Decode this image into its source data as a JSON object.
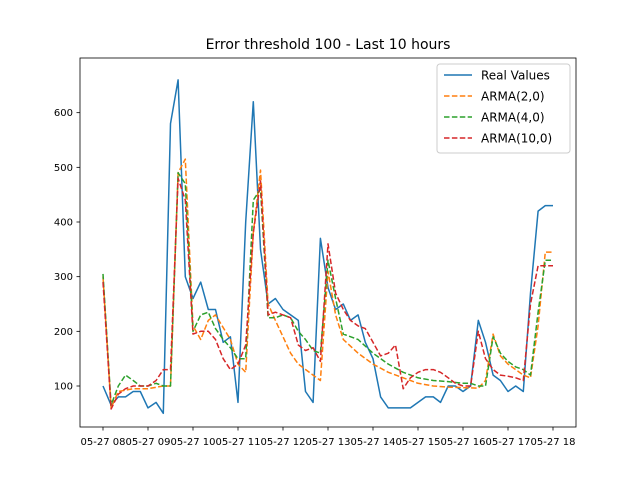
{
  "chart_data": {
    "type": "line",
    "title": "Error threshold 100 - Last 10 hours",
    "xlabel": "",
    "ylabel": "",
    "ylim": [
      25,
      700
    ],
    "yticks": [
      100,
      200,
      300,
      400,
      500,
      600
    ],
    "xticks": [
      "05-27 08",
      "05-27 09",
      "05-27 10",
      "05-27 11",
      "05-27 12",
      "05-27 13",
      "05-27 14",
      "05-27 15",
      "05-27 16",
      "05-27 17",
      "05-27 18"
    ],
    "legend_position": "top-right",
    "grid": false,
    "series": [
      {
        "name": "Real Values",
        "color": "#1f77b4",
        "dash": "solid",
        "x": [
          0.0,
          0.18,
          0.34,
          0.5,
          0.67,
          0.83,
          1.0,
          1.18,
          1.34,
          1.5,
          1.67,
          1.83,
          2.0,
          2.17,
          2.34,
          2.5,
          2.67,
          2.83,
          3.0,
          3.17,
          3.34,
          3.5,
          3.67,
          3.83,
          4.0,
          4.17,
          4.34,
          4.5,
          4.67,
          4.83,
          5.0,
          5.17,
          5.34,
          5.5,
          5.67,
          5.83,
          6.0,
          6.17,
          6.34,
          6.5,
          6.67,
          6.83,
          7.0,
          7.17,
          7.34,
          7.5,
          7.67,
          7.83,
          8.0,
          8.17,
          8.34,
          8.5,
          8.67,
          8.83,
          9.0,
          9.17,
          9.34,
          9.5,
          9.67,
          9.83,
          10.0
        ],
        "values": [
          100,
          65,
          80,
          80,
          90,
          90,
          60,
          70,
          50,
          580,
          660,
          300,
          260,
          290,
          240,
          240,
          180,
          190,
          70,
          400,
          620,
          350,
          250,
          260,
          240,
          230,
          220,
          90,
          70,
          370,
          280,
          240,
          250,
          220,
          230,
          180,
          150,
          80,
          60,
          60,
          60,
          60,
          70,
          80,
          80,
          70,
          100,
          100,
          90,
          100,
          220,
          180,
          120,
          110,
          90,
          100,
          90,
          270,
          420,
          430,
          430
        ]
      },
      {
        "name": "ARMA(2,0)",
        "color": "#ff7f0e",
        "dash": "dashed",
        "x": [
          0.0,
          0.18,
          0.34,
          0.67,
          1.0,
          1.34,
          1.5,
          1.67,
          1.83,
          2.0,
          2.17,
          2.34,
          2.5,
          2.83,
          3.0,
          3.17,
          3.34,
          3.5,
          3.67,
          3.83,
          4.0,
          4.17,
          4.34,
          4.67,
          4.83,
          5.0,
          5.17,
          5.34,
          5.67,
          6.0,
          6.34,
          6.67,
          7.0,
          7.34,
          7.67,
          8.0,
          8.34,
          8.5,
          8.67,
          8.83,
          9.0,
          9.34,
          9.5,
          9.67,
          9.83,
          10.0
        ],
        "values": [
          300,
          60,
          90,
          95,
          95,
          100,
          100,
          490,
          515,
          210,
          185,
          220,
          230,
          185,
          140,
          125,
          380,
          495,
          250,
          220,
          190,
          160,
          140,
          120,
          110,
          310,
          230,
          185,
          160,
          140,
          125,
          115,
          105,
          100,
          98,
          97,
          96,
          110,
          195,
          155,
          140,
          120,
          115,
          210,
          345,
          345
        ]
      },
      {
        "name": "ARMA(4,0)",
        "color": "#2ca02c",
        "dash": "dashed",
        "x": [
          0.0,
          0.18,
          0.34,
          0.5,
          0.67,
          0.83,
          1.0,
          1.18,
          1.34,
          1.5,
          1.67,
          1.83,
          2.0,
          2.17,
          2.34,
          2.5,
          2.67,
          2.83,
          3.0,
          3.17,
          3.34,
          3.5,
          3.67,
          3.83,
          4.0,
          4.17,
          4.34,
          4.5,
          4.67,
          4.83,
          5.0,
          5.17,
          5.34,
          5.67,
          6.0,
          6.34,
          6.67,
          7.0,
          7.34,
          7.67,
          8.0,
          8.17,
          8.34,
          8.5,
          8.67,
          8.83,
          9.0,
          9.17,
          9.34,
          9.5,
          9.67,
          9.83,
          10.0
        ],
        "values": [
          305,
          65,
          100,
          120,
          110,
          100,
          100,
          105,
          100,
          100,
          490,
          470,
          200,
          230,
          235,
          205,
          185,
          170,
          150,
          150,
          440,
          460,
          225,
          225,
          230,
          225,
          200,
          185,
          165,
          160,
          330,
          260,
          195,
          185,
          160,
          140,
          125,
          115,
          110,
          108,
          105,
          105,
          100,
          100,
          190,
          160,
          145,
          135,
          130,
          120,
          235,
          330,
          330
        ]
      },
      {
        "name": "ARMA(10,0)",
        "color": "#d62728",
        "dash": "dashed",
        "x": [
          0.0,
          0.18,
          0.34,
          0.5,
          0.67,
          0.83,
          1.0,
          1.18,
          1.34,
          1.5,
          1.67,
          1.83,
          2.0,
          2.17,
          2.34,
          2.5,
          2.67,
          2.83,
          3.0,
          3.17,
          3.34,
          3.5,
          3.67,
          3.83,
          4.0,
          4.17,
          4.34,
          4.5,
          4.67,
          4.83,
          5.0,
          5.17,
          5.34,
          5.5,
          5.67,
          5.83,
          6.0,
          6.17,
          6.34,
          6.5,
          6.67,
          6.83,
          7.0,
          7.17,
          7.34,
          7.5,
          7.67,
          7.83,
          8.0,
          8.17,
          8.34,
          8.5,
          8.67,
          8.83,
          9.0,
          9.17,
          9.34,
          9.5,
          9.67,
          9.83,
          10.0
        ],
        "values": [
          290,
          58,
          85,
          95,
          100,
          100,
          100,
          110,
          130,
          130,
          480,
          440,
          195,
          200,
          200,
          185,
          150,
          130,
          140,
          175,
          380,
          475,
          230,
          235,
          230,
          225,
          175,
          165,
          170,
          145,
          360,
          270,
          240,
          220,
          210,
          205,
          180,
          155,
          160,
          175,
          95,
          115,
          125,
          130,
          130,
          125,
          115,
          105,
          100,
          100,
          200,
          150,
          130,
          120,
          118,
          115,
          110,
          250,
          320,
          320,
          320
        ]
      }
    ]
  }
}
